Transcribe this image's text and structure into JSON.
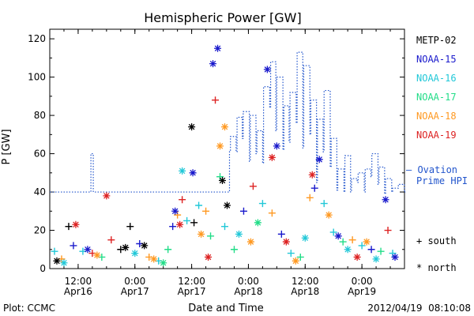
{
  "chart_data": {
    "type": "scatter",
    "title": "Hemispheric Power [GW]",
    "ylabel": "P [GW]",
    "xlabel": "Date and Time",
    "ylim": [
      0,
      125
    ],
    "yticks": [
      0,
      20,
      40,
      60,
      80,
      100,
      120
    ],
    "x_start": "2012-04-16 06:00",
    "x_end": "2012-04-19 09:00",
    "xticks": [
      {
        "t": "2012-04-16 12:00",
        "line1": "12:00",
        "line2": "Apr16"
      },
      {
        "t": "2012-04-17 00:00",
        "line1": "0:00",
        "line2": "Apr17"
      },
      {
        "t": "2012-04-17 12:00",
        "line1": "12:00",
        "line2": "Apr17"
      },
      {
        "t": "2012-04-18 00:00",
        "line1": "0:00",
        "line2": "Apr18"
      },
      {
        "t": "2012-04-18 12:00",
        "line1": "12:00",
        "line2": "Apr18"
      },
      {
        "t": "2012-04-19 00:00",
        "line1": "0:00",
        "line2": "Apr19"
      }
    ],
    "legend": {
      "satellites": [
        {
          "name": "METP-02",
          "color": "#000000"
        },
        {
          "name": "NOAA-15",
          "color": "#1a1acc"
        },
        {
          "name": "NOAA-16",
          "color": "#22c8d8"
        },
        {
          "name": "NOAA-17",
          "color": "#22dd88"
        },
        {
          "name": "NOAA-18",
          "color": "#ff9922"
        },
        {
          "name": "NOAA-19",
          "color": "#dd2222"
        }
      ],
      "ovation_label_1": "— Ovation",
      "ovation_label_2": "Prime HPI",
      "south_label": "+ south",
      "north_label": "* north"
    },
    "ovation_step": {
      "name": "Ovation Prime HPI",
      "color": "#2255cc",
      "x_hours": [
        0,
        8.7,
        9.2,
        12,
        36,
        36.8,
        38,
        38.2,
        39.4,
        39.6,
        40.7,
        40.9,
        42.2,
        42.4,
        43.6,
        43.8,
        45,
        45.2,
        46.5,
        46.7,
        47.8,
        48,
        49.3,
        49.5,
        50.6,
        50.8,
        52.1,
        52.3,
        53.5,
        53.7,
        55,
        55.2,
        56.4,
        56.6,
        57.8,
        58,
        59.3,
        59.5,
        60.7,
        60.9,
        62.2,
        62.4,
        63.6,
        63.8,
        65,
        65.2,
        66.5,
        66.7,
        67.9,
        68.1,
        69.4,
        69.6,
        70.8,
        71,
        72.3,
        72.5,
        73.7,
        73.9,
        75,
        75.2
      ],
      "values": [
        40,
        60,
        40,
        40,
        40,
        40,
        61,
        69,
        61,
        79,
        68,
        82,
        56,
        80,
        60,
        72,
        55,
        95,
        84,
        108,
        72,
        100,
        62,
        85,
        66,
        92,
        76,
        113,
        63,
        106,
        70,
        88,
        45,
        78,
        61,
        93,
        53,
        68,
        41,
        52,
        40,
        59,
        40,
        47,
        45,
        50,
        40,
        52,
        48,
        60,
        44,
        53,
        39,
        47,
        40,
        42,
        44,
        44,
        40,
        40
      ]
    },
    "points": {
      "south": [
        {
          "t": "2012-04-16 07:00",
          "y": 9,
          "sat": "NOAA-16"
        },
        {
          "t": "2012-04-16 08:30",
          "y": 5,
          "sat": "NOAA-18"
        },
        {
          "t": "2012-04-16 10:00",
          "y": 22,
          "sat": "METP-02"
        },
        {
          "t": "2012-04-16 11:00",
          "y": 12,
          "sat": "NOAA-15"
        },
        {
          "t": "2012-04-16 13:00",
          "y": 9,
          "sat": "NOAA-16"
        },
        {
          "t": "2012-04-16 15:00",
          "y": 8,
          "sat": "NOAA-19"
        },
        {
          "t": "2012-04-16 17:00",
          "y": 6,
          "sat": "NOAA-17"
        },
        {
          "t": "2012-04-16 19:00",
          "y": 15,
          "sat": "NOAA-19"
        },
        {
          "t": "2012-04-16 21:00",
          "y": 10,
          "sat": "METP-02"
        },
        {
          "t": "2012-04-16 23:00",
          "y": 22,
          "sat": "METP-02"
        },
        {
          "t": "2012-04-17 01:00",
          "y": 13,
          "sat": "NOAA-15"
        },
        {
          "t": "2012-04-17 03:00",
          "y": 6,
          "sat": "NOAA-18"
        },
        {
          "t": "2012-04-17 05:00",
          "y": 4,
          "sat": "NOAA-16"
        },
        {
          "t": "2012-04-17 07:00",
          "y": 10,
          "sat": "NOAA-17"
        },
        {
          "t": "2012-04-17 08:00",
          "y": 22,
          "sat": "NOAA-15"
        },
        {
          "t": "2012-04-17 09:00",
          "y": 28,
          "sat": "NOAA-18"
        },
        {
          "t": "2012-04-17 10:00",
          "y": 36,
          "sat": "NOAA-19"
        },
        {
          "t": "2012-04-17 11:00",
          "y": 25,
          "sat": "NOAA-16"
        },
        {
          "t": "2012-04-17 12:30",
          "y": 24,
          "sat": "METP-02"
        },
        {
          "t": "2012-04-17 13:30",
          "y": 33,
          "sat": "NOAA-16"
        },
        {
          "t": "2012-04-17 15:00",
          "y": 30,
          "sat": "NOAA-18"
        },
        {
          "t": "2012-04-17 16:00",
          "y": 17,
          "sat": "NOAA-17"
        },
        {
          "t": "2012-04-17 17:00",
          "y": 88,
          "sat": "NOAA-19"
        },
        {
          "t": "2012-04-17 18:00",
          "y": 48,
          "sat": "NOAA-17"
        },
        {
          "t": "2012-04-17 19:00",
          "y": 22,
          "sat": "NOAA-16"
        },
        {
          "t": "2012-04-17 21:00",
          "y": 10,
          "sat": "NOAA-17"
        },
        {
          "t": "2012-04-17 23:00",
          "y": 30,
          "sat": "NOAA-15"
        },
        {
          "t": "2012-04-18 01:00",
          "y": 43,
          "sat": "NOAA-19"
        },
        {
          "t": "2012-04-18 03:00",
          "y": 34,
          "sat": "NOAA-16"
        },
        {
          "t": "2012-04-18 05:00",
          "y": 29,
          "sat": "NOAA-18"
        },
        {
          "t": "2012-04-18 07:00",
          "y": 18,
          "sat": "NOAA-15"
        },
        {
          "t": "2012-04-18 09:00",
          "y": 8,
          "sat": "NOAA-16"
        },
        {
          "t": "2012-04-18 11:00",
          "y": 6,
          "sat": "NOAA-17"
        },
        {
          "t": "2012-04-18 13:00",
          "y": 37,
          "sat": "NOAA-18"
        },
        {
          "t": "2012-04-18 14:00",
          "y": 42,
          "sat": "NOAA-15"
        },
        {
          "t": "2012-04-18 16:00",
          "y": 34,
          "sat": "NOAA-16"
        },
        {
          "t": "2012-04-18 18:00",
          "y": 19,
          "sat": "NOAA-16"
        },
        {
          "t": "2012-04-18 20:00",
          "y": 14,
          "sat": "NOAA-17"
        },
        {
          "t": "2012-04-18 22:00",
          "y": 15,
          "sat": "NOAA-18"
        },
        {
          "t": "2012-04-19 00:00",
          "y": 12,
          "sat": "NOAA-16"
        },
        {
          "t": "2012-04-19 02:00",
          "y": 10,
          "sat": "NOAA-15"
        },
        {
          "t": "2012-04-19 04:00",
          "y": 9,
          "sat": "NOAA-17"
        },
        {
          "t": "2012-04-19 05:30",
          "y": 20,
          "sat": "NOAA-19"
        },
        {
          "t": "2012-04-19 06:30",
          "y": 8,
          "sat": "NOAA-16"
        }
      ],
      "north": [
        {
          "t": "2012-04-16 07:30",
          "y": 4,
          "sat": "METP-02"
        },
        {
          "t": "2012-04-16 09:00",
          "y": 3,
          "sat": "NOAA-16"
        },
        {
          "t": "2012-04-16 11:30",
          "y": 23,
          "sat": "NOAA-19"
        },
        {
          "t": "2012-04-16 14:00",
          "y": 10,
          "sat": "NOAA-15"
        },
        {
          "t": "2012-04-16 16:00",
          "y": 7,
          "sat": "NOAA-18"
        },
        {
          "t": "2012-04-16 18:00",
          "y": 38,
          "sat": "NOAA-19"
        },
        {
          "t": "2012-04-16 22:00",
          "y": 11,
          "sat": "METP-02"
        },
        {
          "t": "2012-04-17 00:00",
          "y": 8,
          "sat": "NOAA-16"
        },
        {
          "t": "2012-04-17 02:00",
          "y": 12,
          "sat": "METP-02"
        },
        {
          "t": "2012-04-17 04:00",
          "y": 5,
          "sat": "NOAA-18"
        },
        {
          "t": "2012-04-17 06:00",
          "y": 3,
          "sat": "NOAA-17"
        },
        {
          "t": "2012-04-17 08:30",
          "y": 30,
          "sat": "NOAA-15"
        },
        {
          "t": "2012-04-17 09:30",
          "y": 23,
          "sat": "NOAA-19"
        },
        {
          "t": "2012-04-17 10:00",
          "y": 51,
          "sat": "NOAA-16"
        },
        {
          "t": "2012-04-17 12:00",
          "y": 74,
          "sat": "METP-02"
        },
        {
          "t": "2012-04-17 12:15",
          "y": 50,
          "sat": "NOAA-15"
        },
        {
          "t": "2012-04-17 14:00",
          "y": 18,
          "sat": "NOAA-18"
        },
        {
          "t": "2012-04-17 15:30",
          "y": 6,
          "sat": "NOAA-19"
        },
        {
          "t": "2012-04-17 16:30",
          "y": 107,
          "sat": "NOAA-15"
        },
        {
          "t": "2012-04-17 17:30",
          "y": 115,
          "sat": "NOAA-15"
        },
        {
          "t": "2012-04-17 18:00",
          "y": 64,
          "sat": "NOAA-18"
        },
        {
          "t": "2012-04-17 18:30",
          "y": 46,
          "sat": "METP-02"
        },
        {
          "t": "2012-04-17 19:00",
          "y": 74,
          "sat": "NOAA-18"
        },
        {
          "t": "2012-04-17 19:30",
          "y": 33,
          "sat": "METP-02"
        },
        {
          "t": "2012-04-17 22:00",
          "y": 18,
          "sat": "NOAA-16"
        },
        {
          "t": "2012-04-18 00:30",
          "y": 14,
          "sat": "NOAA-18"
        },
        {
          "t": "2012-04-18 02:00",
          "y": 24,
          "sat": "NOAA-17"
        },
        {
          "t": "2012-04-18 04:00",
          "y": 104,
          "sat": "NOAA-15"
        },
        {
          "t": "2012-04-18 05:00",
          "y": 58,
          "sat": "NOAA-19"
        },
        {
          "t": "2012-04-18 06:00",
          "y": 64,
          "sat": "NOAA-15"
        },
        {
          "t": "2012-04-18 08:00",
          "y": 14,
          "sat": "NOAA-19"
        },
        {
          "t": "2012-04-18 10:00",
          "y": 4,
          "sat": "NOAA-18"
        },
        {
          "t": "2012-04-18 12:00",
          "y": 16,
          "sat": "NOAA-16"
        },
        {
          "t": "2012-04-18 13:30",
          "y": 49,
          "sat": "NOAA-19"
        },
        {
          "t": "2012-04-18 15:00",
          "y": 57,
          "sat": "NOAA-15"
        },
        {
          "t": "2012-04-18 17:00",
          "y": 28,
          "sat": "NOAA-18"
        },
        {
          "t": "2012-04-18 19:00",
          "y": 17,
          "sat": "NOAA-15"
        },
        {
          "t": "2012-04-18 21:00",
          "y": 10,
          "sat": "NOAA-16"
        },
        {
          "t": "2012-04-18 23:00",
          "y": 6,
          "sat": "NOAA-19"
        },
        {
          "t": "2012-04-19 01:00",
          "y": 14,
          "sat": "NOAA-18"
        },
        {
          "t": "2012-04-19 03:00",
          "y": 5,
          "sat": "NOAA-16"
        },
        {
          "t": "2012-04-19 05:00",
          "y": 36,
          "sat": "NOAA-15"
        },
        {
          "t": "2012-04-19 07:00",
          "y": 6,
          "sat": "NOAA-15"
        }
      ]
    }
  },
  "footer": {
    "left": "Plot: CCMC",
    "right": "2012/04/19  08:10:08"
  }
}
